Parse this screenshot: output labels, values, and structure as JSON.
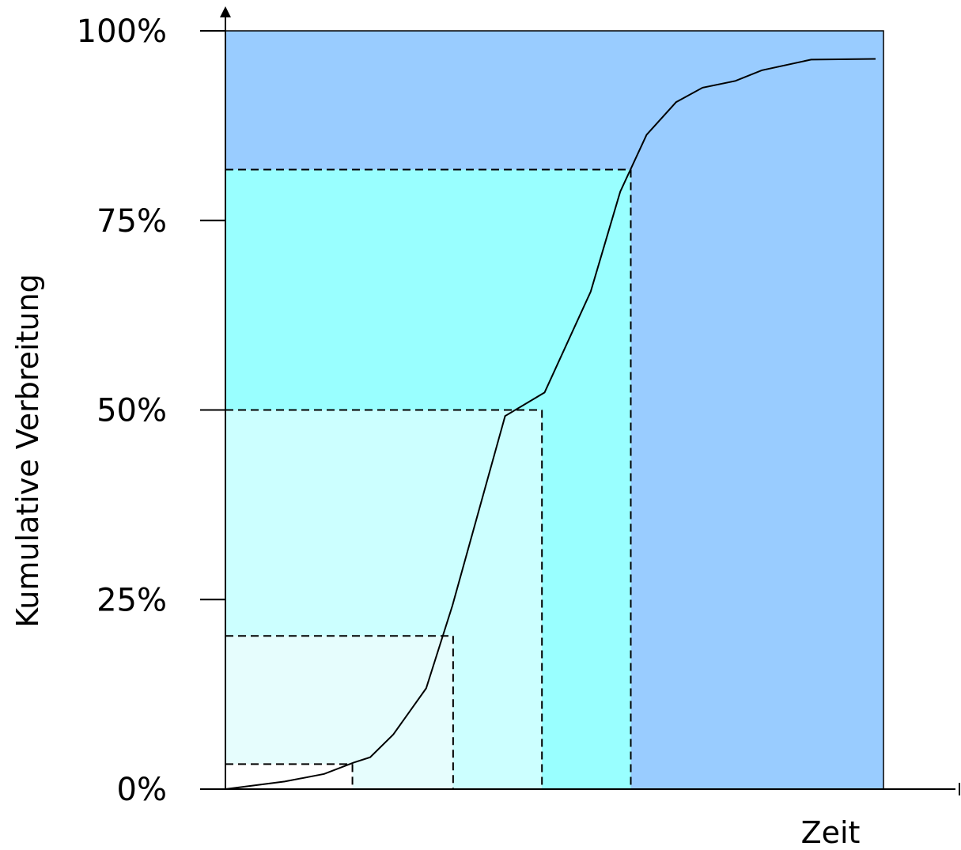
{
  "chart_data": {
    "type": "line",
    "xlabel": "Zeit",
    "ylabel": "Kumulative Verbreitung",
    "ylim": [
      0,
      100
    ],
    "xlim": [
      0,
      100
    ],
    "y_ticks": [
      {
        "value": 0,
        "label": "0%"
      },
      {
        "value": 25,
        "label": "25%"
      },
      {
        "value": 50,
        "label": "50%"
      },
      {
        "value": 75,
        "label": "75%"
      },
      {
        "value": 100,
        "label": "100%"
      }
    ],
    "series": [
      {
        "x": [
          0,
          9,
          15,
          19.5,
          22,
          25.5,
          30.5,
          34.5,
          42.5,
          48.5,
          55.5,
          60,
          64,
          68.5,
          72.5,
          77.5,
          81.5,
          89,
          98.8
        ],
        "y": [
          0,
          1,
          2,
          3.5,
          4.2,
          7.2,
          13.3,
          24.2,
          49.2,
          52.3,
          65.6,
          78.8,
          86.3,
          90.6,
          92.5,
          93.4,
          94.8,
          96.2,
          96.3
        ]
      }
    ],
    "threshold_markers": [
      {
        "x": 19.3,
        "y": 3.3
      },
      {
        "x": 34.6,
        "y": 20.2
      },
      {
        "x": 48.1,
        "y": 50
      },
      {
        "x": 61.6,
        "y": 81.7
      }
    ],
    "colors": {
      "band_1": "#e6fdfd",
      "band_2": "#ccffff",
      "band_3": "#99ffff",
      "band_4": "#99ccff",
      "curve": "#000000",
      "guide": "#000000"
    },
    "grid": false,
    "legend": "none"
  }
}
